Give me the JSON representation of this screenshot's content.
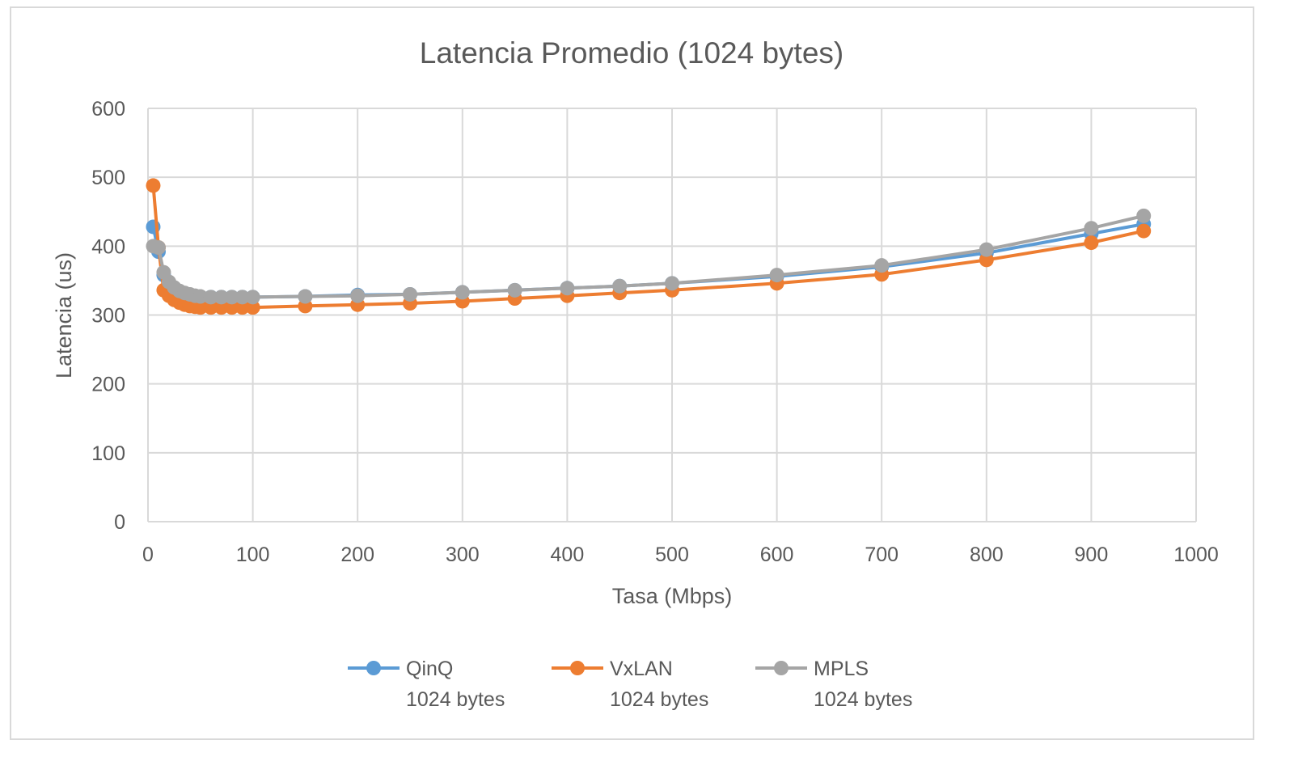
{
  "chart_data": {
    "type": "line",
    "title": "Latencia Promedio (1024 bytes)",
    "xlabel": "Tasa (Mbps)",
    "ylabel": "Latencia (us)",
    "xlim": [
      0,
      1000
    ],
    "ylim": [
      0,
      600
    ],
    "x_ticks": [
      "0",
      "100",
      "200",
      "300",
      "400",
      "500",
      "600",
      "700",
      "800",
      "900",
      "1000"
    ],
    "y_ticks": [
      "0",
      "100",
      "200",
      "300",
      "400",
      "500",
      "600"
    ],
    "grid": true,
    "legend_position": "bottom",
    "series": [
      {
        "name": "QinQ\n1024 bytes",
        "color": "#5B9BD5",
        "x": [
          5,
          10,
          15,
          20,
          25,
          30,
          35,
          40,
          45,
          50,
          60,
          70,
          80,
          90,
          100,
          150,
          200,
          250,
          300,
          350,
          400,
          450,
          500,
          600,
          700,
          800,
          900,
          950
        ],
        "y": [
          428,
          392,
          358,
          345,
          338,
          333,
          330,
          328,
          327,
          326,
          326,
          326,
          326,
          326,
          326,
          327,
          329,
          330,
          333,
          336,
          339,
          342,
          346,
          356,
          370,
          390,
          418,
          432
        ]
      },
      {
        "name": "VxLAN\n1024 bytes",
        "color": "#ED7D31",
        "x": [
          5,
          10,
          15,
          20,
          25,
          30,
          35,
          40,
          45,
          50,
          60,
          70,
          80,
          90,
          100,
          150,
          200,
          250,
          300,
          350,
          400,
          450,
          500,
          600,
          700,
          800,
          900,
          950
        ],
        "y": [
          488,
          398,
          336,
          328,
          322,
          318,
          315,
          313,
          312,
          311,
          311,
          311,
          311,
          311,
          311,
          313,
          315,
          317,
          320,
          324,
          328,
          332,
          336,
          346,
          359,
          380,
          405,
          422
        ]
      },
      {
        "name": "MPLS\n1024 bytes",
        "color": "#A5A5A5",
        "x": [
          5,
          10,
          15,
          20,
          25,
          30,
          35,
          40,
          45,
          50,
          60,
          70,
          80,
          90,
          100,
          150,
          200,
          250,
          300,
          350,
          400,
          450,
          500,
          600,
          700,
          800,
          900,
          950
        ],
        "y": [
          400,
          398,
          362,
          348,
          340,
          335,
          332,
          330,
          328,
          327,
          326,
          326,
          326,
          326,
          326,
          327,
          328,
          330,
          333,
          336,
          339,
          342,
          346,
          358,
          372,
          395,
          426,
          444
        ]
      }
    ]
  }
}
